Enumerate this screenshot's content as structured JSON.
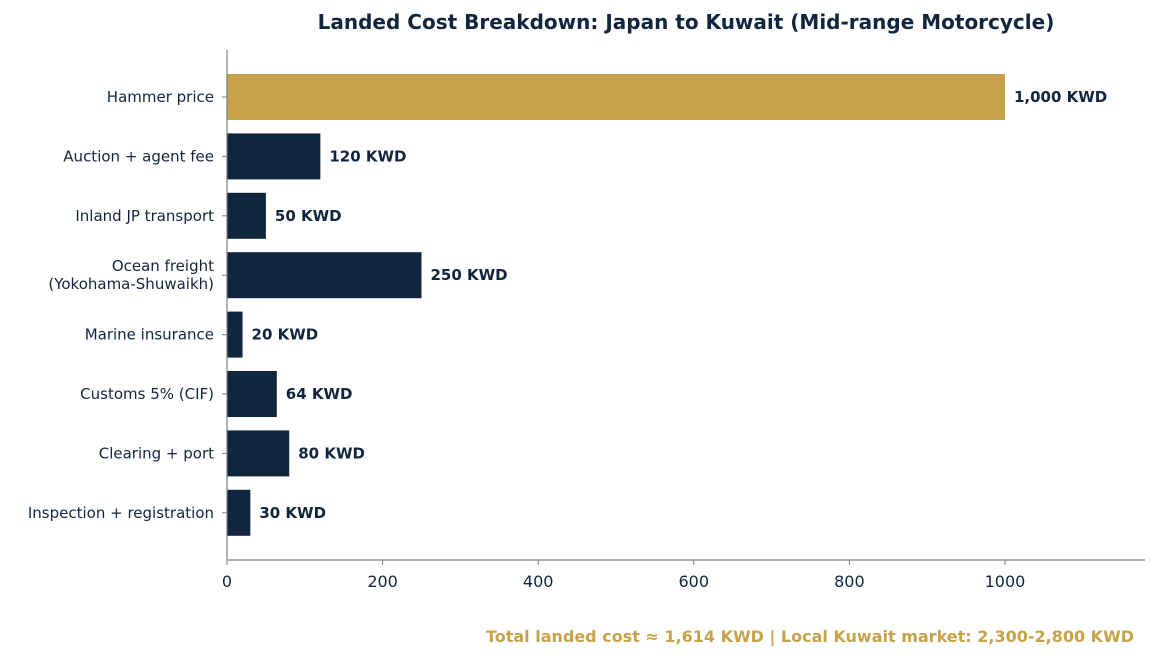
{
  "chart_data": {
    "type": "bar",
    "orientation": "horizontal",
    "title": "Landed Cost Breakdown: Japan to Kuwait (Mid-range Motorcycle)",
    "xlabel": "",
    "ylabel": "",
    "xlim": [
      0,
      1180
    ],
    "xticks": [
      0,
      200,
      400,
      600,
      800,
      1000
    ],
    "grid": false,
    "legend": "none",
    "value_label_suffix": " KWD",
    "categories": [
      [
        "Hammer price"
      ],
      [
        "Auction + agent fee"
      ],
      [
        "Inland JP transport"
      ],
      [
        "Ocean freight",
        "(Yokohama-Shuwaikh)"
      ],
      [
        "Marine insurance"
      ],
      [
        "Customs 5% (CIF)"
      ],
      [
        "Clearing + port"
      ],
      [
        "Inspection + registration"
      ]
    ],
    "values": [
      1000,
      120,
      50,
      250,
      20,
      64,
      80,
      30
    ],
    "highlight_index": 0,
    "colors": {
      "highlight": "#C8A24A",
      "bar": "#11253F",
      "text": "#11253F",
      "axis": "#7A7F88",
      "footnote": "#C8A24A"
    },
    "footnote": "Total landed cost ≈ 1,614 KWD  |  Local Kuwait market: 2,300-2,800 KWD"
  }
}
